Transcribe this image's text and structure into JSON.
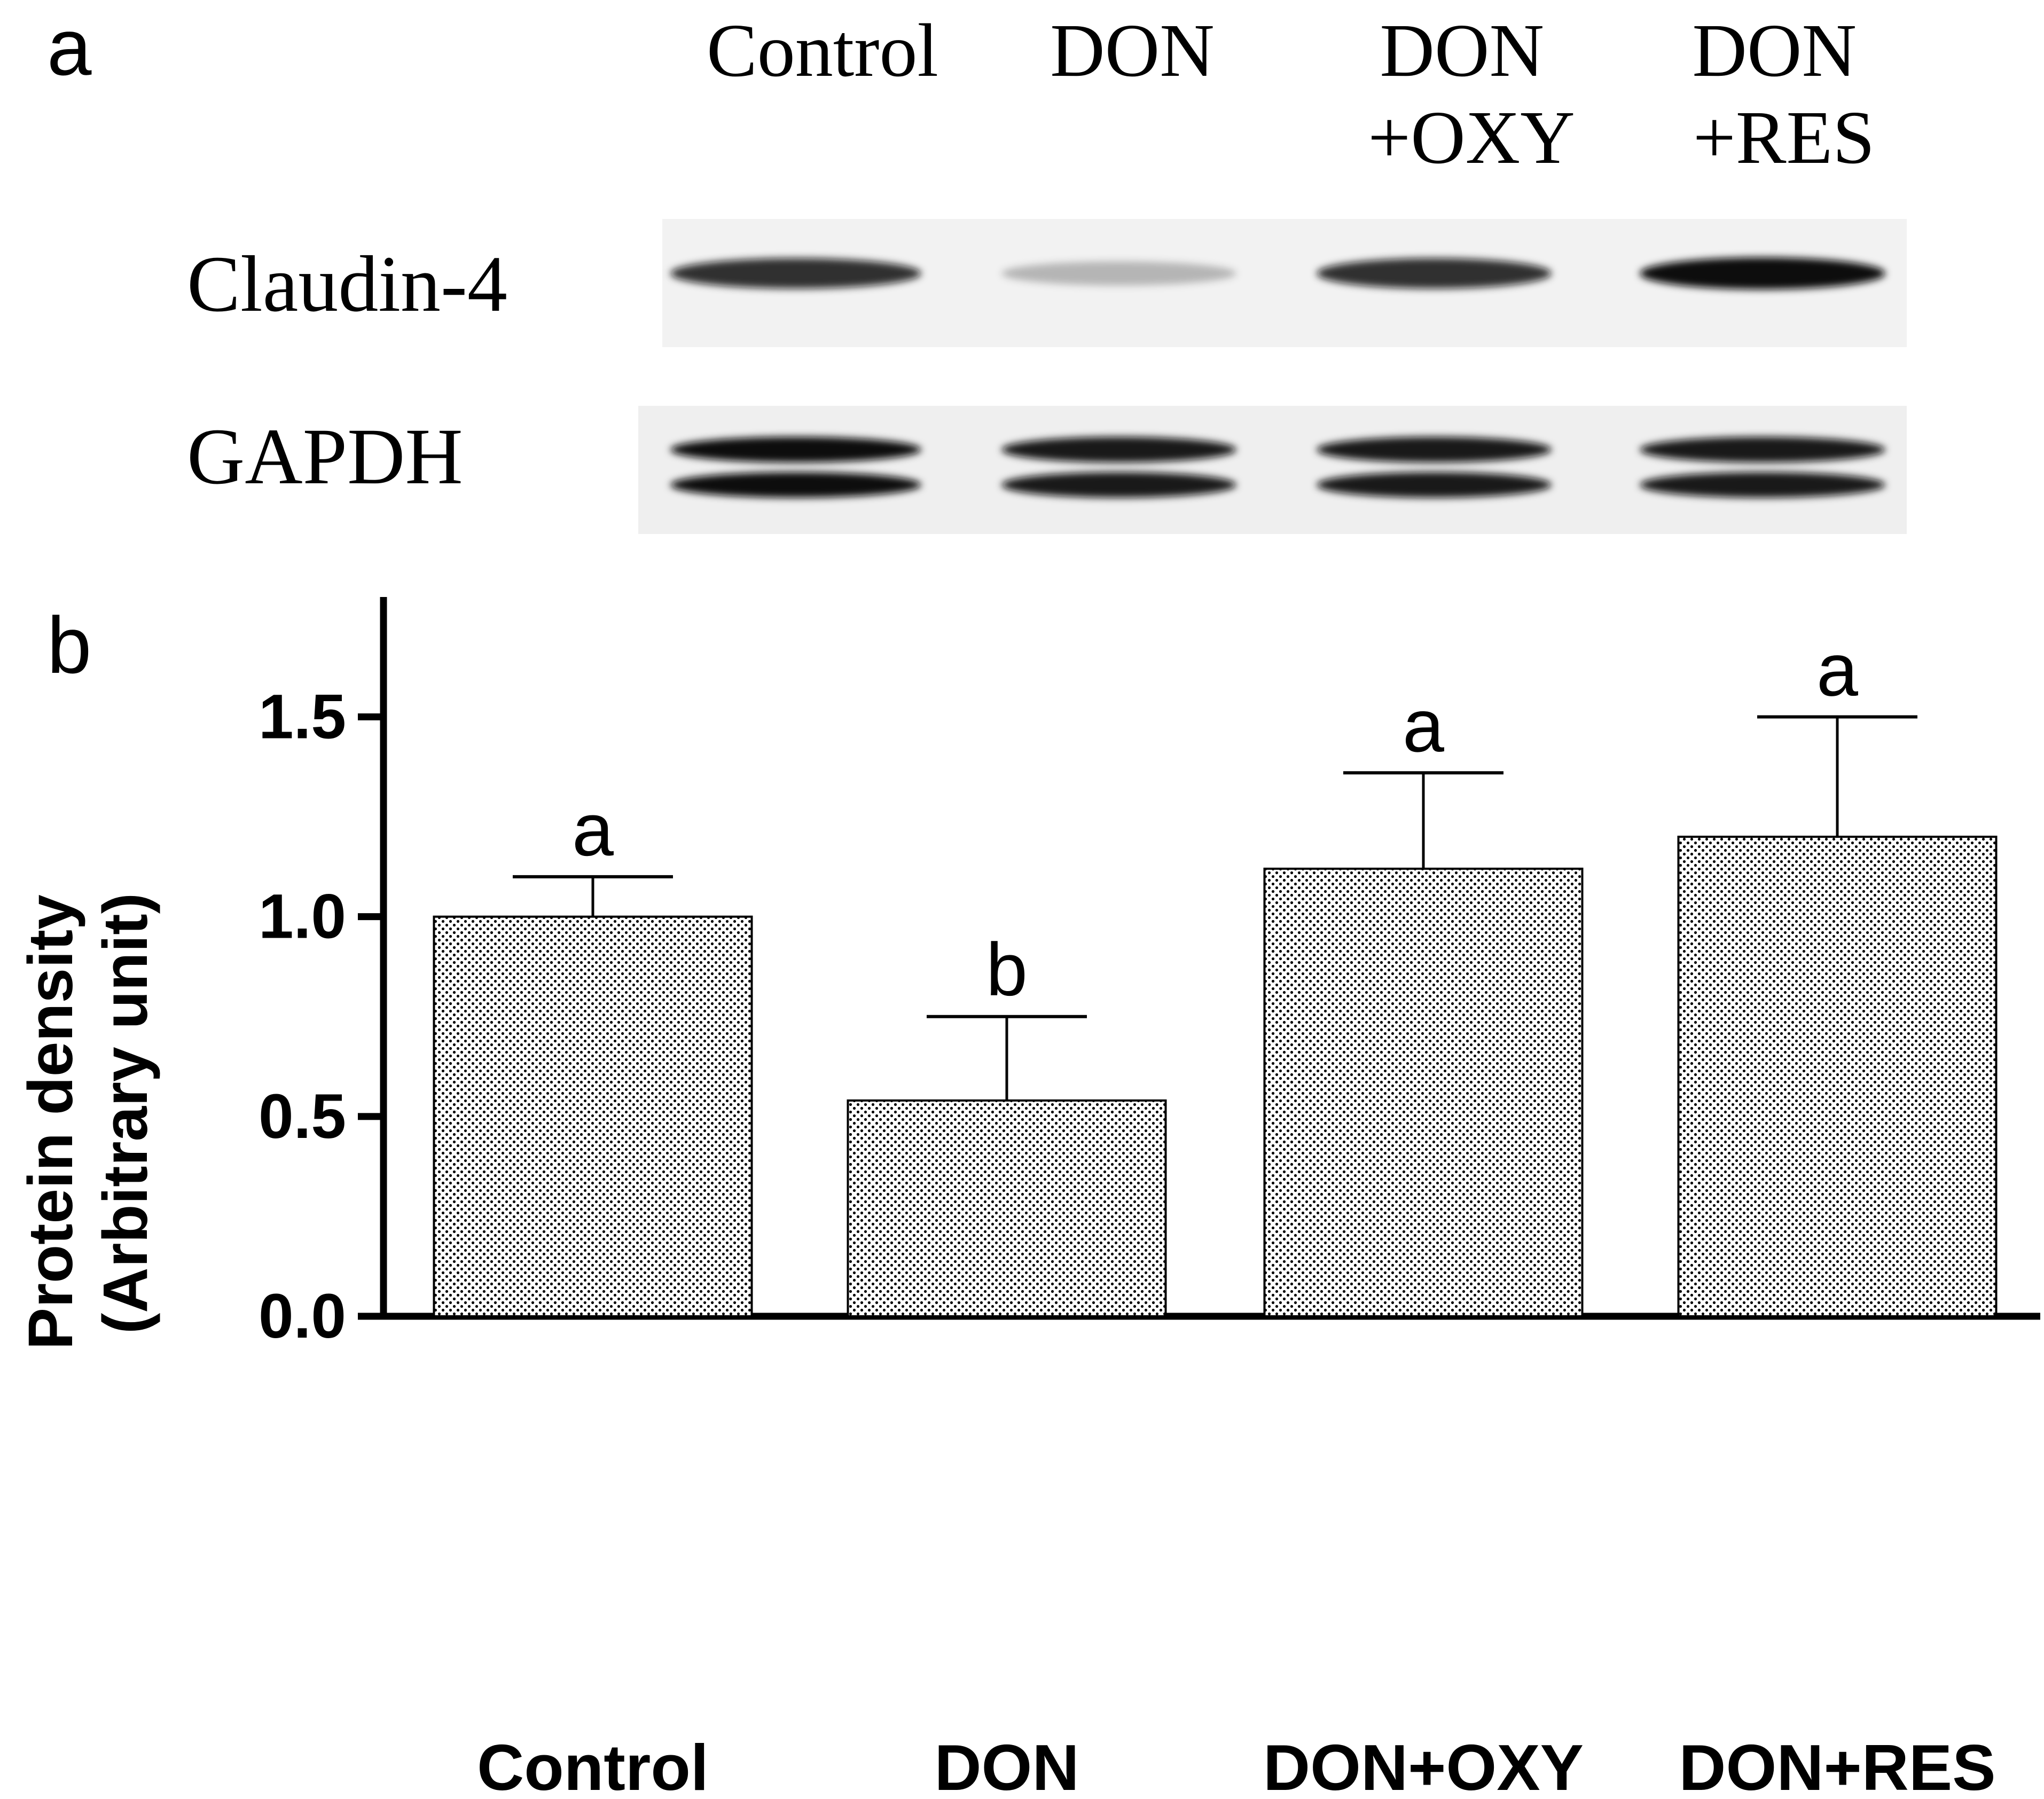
{
  "panel_a": {
    "panel_label": "a",
    "lanes": [
      {
        "label_lines": [
          "Control"
        ]
      },
      {
        "label_lines": [
          "DON"
        ]
      },
      {
        "label_lines": [
          "DON",
          "+OXY"
        ]
      },
      {
        "label_lines": [
          "DON",
          "+RES"
        ]
      }
    ],
    "rows": [
      {
        "label": "Claudin-4",
        "band_intensity": [
          0.85,
          0.25,
          0.85,
          1.0
        ]
      },
      {
        "label": "GAPDH",
        "band_intensity": [
          1.0,
          0.95,
          0.95,
          0.95
        ]
      }
    ]
  },
  "panel_b": {
    "panel_label": "b"
  },
  "chart_data": {
    "type": "bar",
    "title": "",
    "xlabel": "",
    "ylabel_lines": [
      "Protein density",
      "(Arbitrary unit)"
    ],
    "categories": [
      "Control",
      "DON",
      "DON+OXY",
      "DON+RES"
    ],
    "values": [
      1.0,
      0.54,
      1.12,
      1.2
    ],
    "error_upper": [
      1.1,
      0.75,
      1.36,
      1.5
    ],
    "significance_letters": [
      "a",
      "b",
      "a",
      "a"
    ],
    "ylim": [
      0,
      1.8
    ],
    "yticks": [
      0.0,
      0.5,
      1.0,
      1.5
    ],
    "ytick_labels": [
      "0.0",
      "0.5",
      "1.0",
      "1.5"
    ],
    "bar_fill": "dotted pattern",
    "grid": false,
    "legend": "none"
  },
  "colors": {
    "ink": "#000000",
    "background": "#ffffff",
    "blot_background": "#f2f2f2",
    "band": "#111111"
  }
}
